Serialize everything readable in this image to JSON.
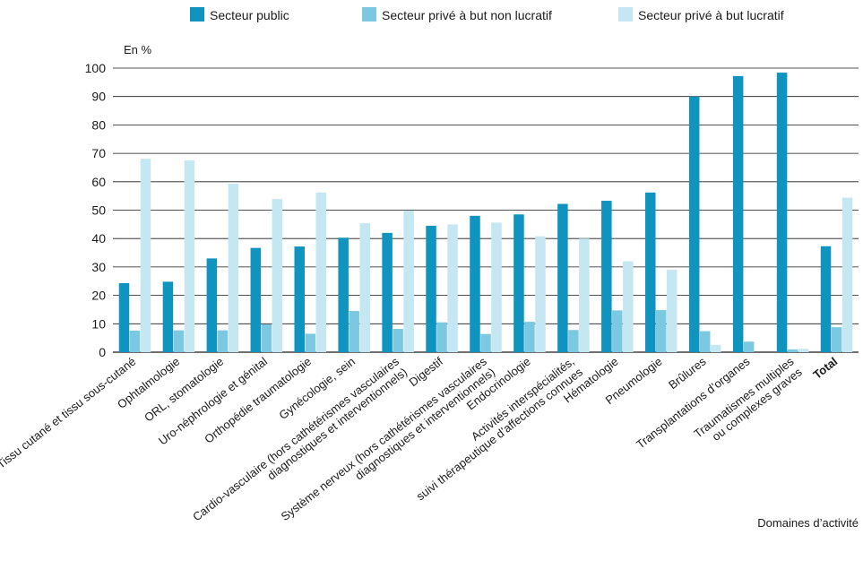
{
  "chart_data": {
    "type": "bar",
    "ylabel": "En %",
    "xlabel": "Domaines d’activité",
    "ylim": [
      0,
      100
    ],
    "yticks": [
      0,
      10,
      20,
      30,
      40,
      50,
      60,
      70,
      80,
      90,
      100
    ],
    "grid": "horizontal",
    "legend_position": "top",
    "categories": [
      [
        "Tissu cutané et tissu sous-cutané"
      ],
      [
        "Ophtalmologie"
      ],
      [
        "ORL, stomatologie"
      ],
      [
        "Uro-néphrologie et génital"
      ],
      [
        "Orthopédie traumatologie"
      ],
      [
        "Gynécologie, sein"
      ],
      [
        "Cardio-vasculaire (hors cathétérismes vasculaires",
        "diagnostiques et interventionnels)"
      ],
      [
        "Digestif"
      ],
      [
        "Système nerveux (hors cathétérismes vasculaires",
        "diagnostiques et interventionnels)"
      ],
      [
        "Endocrinologie"
      ],
      [
        "Activités interspécialités,",
        "suivi thérapeutique d’affections connues"
      ],
      [
        "Hématologie"
      ],
      [
        "Pneumologie"
      ],
      [
        "Brûlures"
      ],
      [
        "Transplantations d’organes"
      ],
      [
        "Traumatismes multiples",
        "ou complexes graves"
      ],
      [
        "Total"
      ]
    ],
    "series": [
      {
        "name": "Secteur public",
        "color": "#0f94c0",
        "values": [
          24.3,
          24.8,
          33.0,
          36.7,
          37.2,
          40.3,
          42.0,
          44.5,
          48.0,
          48.5,
          52.2,
          53.3,
          56.2,
          90.0,
          97.2,
          98.4,
          37.3
        ]
      },
      {
        "name": "Secteur privé à but non lucratif",
        "color": "#7cc8e0",
        "values": [
          7.6,
          7.7,
          7.7,
          9.8,
          6.5,
          14.5,
          8.2,
          10.5,
          6.4,
          10.7,
          7.8,
          14.7,
          14.8,
          7.4,
          3.7,
          1.0,
          8.8
        ]
      },
      {
        "name": "Secteur privé à but lucratif",
        "color": "#c5e7f1",
        "values": [
          68.1,
          67.5,
          59.3,
          53.9,
          56.2,
          45.4,
          49.8,
          45.0,
          45.6,
          40.8,
          40.0,
          32.0,
          29.0,
          2.6,
          0.0,
          1.2,
          54.4
        ]
      }
    ]
  }
}
